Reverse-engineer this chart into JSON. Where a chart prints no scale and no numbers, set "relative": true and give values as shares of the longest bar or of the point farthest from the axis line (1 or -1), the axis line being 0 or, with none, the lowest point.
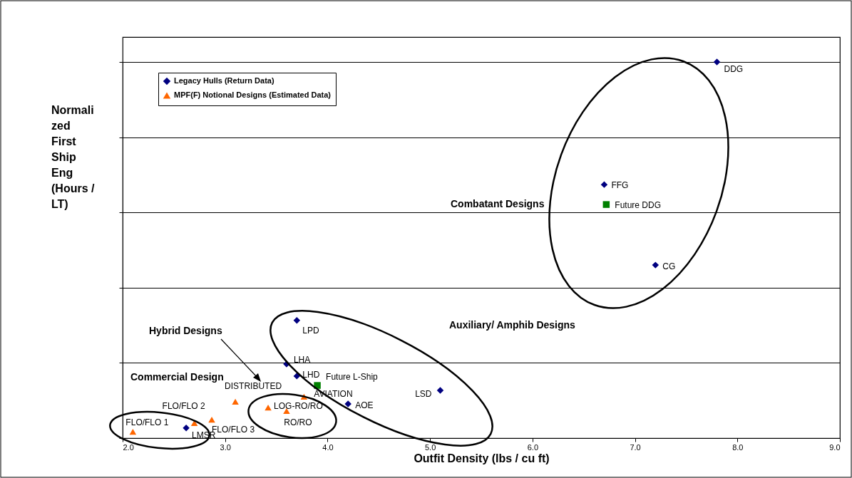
{
  "chart_data": {
    "type": "scatter",
    "relative": true,
    "xlabel": "Outfit Density (lbs / cu ft)",
    "ylabel": "Normalized First Ship Eng (Hours / LT)",
    "xlim": [
      2,
      9
    ],
    "xticks": [
      {
        "value": 2,
        "label": "2.0"
      },
      {
        "value": 3,
        "label": "3.0"
      },
      {
        "value": 4,
        "label": "4.0"
      },
      {
        "value": 5,
        "label": "5.0"
      },
      {
        "value": 6,
        "label": "6.0"
      },
      {
        "value": 7,
        "label": "7.0"
      },
      {
        "value": 8,
        "label": "8.0"
      },
      {
        "value": 9,
        "label": "9.0"
      }
    ],
    "grid": "y",
    "legend": "top left",
    "series": [
      {
        "name": "Legacy Hulls (Return Data)",
        "color": "#000080",
        "marker": "diamond",
        "x": [
          7.8,
          6.7,
          7.2,
          3.7,
          3.6,
          3.7,
          5.1,
          4.2,
          2.62
        ],
        "values": [
          1.0,
          0.674,
          0.46,
          0.313,
          0.197,
          0.165,
          0.127,
          0.091,
          0.027
        ]
      },
      {
        "name": "MPF(F) Notional Designs (Estimated Data)",
        "color": "#ff6600",
        "marker": "triangle",
        "x": [
          2.1,
          2.7,
          2.87,
          3.1,
          3.42,
          3.6,
          3.77
        ],
        "values": [
          0.017,
          0.04,
          0.049,
          0.097,
          0.081,
          0.072,
          0.11
        ]
      },
      {
        "color": "#008000",
        "marker": "square",
        "x": [
          6.72,
          3.9
        ],
        "values": [
          0.621,
          0.14
        ]
      }
    ],
    "annotations": [
      {
        "text": "DDG",
        "x": 7.8,
        "y": 1.0
      },
      {
        "text": "FFG",
        "x": 6.7,
        "y": 0.674
      },
      {
        "text": "Future DDG",
        "x": 6.72,
        "y": 0.621
      },
      {
        "text": "CG",
        "x": 7.2,
        "y": 0.46
      },
      {
        "text": "LPD",
        "x": 3.7,
        "y": 0.313
      },
      {
        "text": "LHA",
        "x": 3.6,
        "y": 0.197
      },
      {
        "text": "LHD",
        "x": 3.7,
        "y": 0.165
      },
      {
        "text": "Future L-Ship",
        "x": 3.9,
        "y": 0.14
      },
      {
        "text": "LSD",
        "x": 5.1,
        "y": 0.127
      },
      {
        "text": "AOE",
        "x": 4.2,
        "y": 0.091
      },
      {
        "text": "LMSR",
        "x": 2.62,
        "y": 0.027
      },
      {
        "text": "FLO/FLO 1",
        "x": 2.1,
        "y": 0.017
      },
      {
        "text": "FLO/FLO 2",
        "x": 2.7,
        "y": 0.04
      },
      {
        "text": "FLO/FLO 3",
        "x": 2.87,
        "y": 0.049
      },
      {
        "text": "DISTRIBUTED",
        "x": 3.1,
        "y": 0.097
      },
      {
        "text": "LOG-RO/RO",
        "x": 3.42,
        "y": 0.081
      },
      {
        "text": "RO/RO",
        "x": 3.6,
        "y": 0.072
      },
      {
        "text": "AVIATION",
        "x": 3.77,
        "y": 0.11
      },
      "Combatant Designs",
      "Auxiliary/ Amphib Designs",
      "Hybrid Designs",
      "Commercial Design"
    ]
  }
}
